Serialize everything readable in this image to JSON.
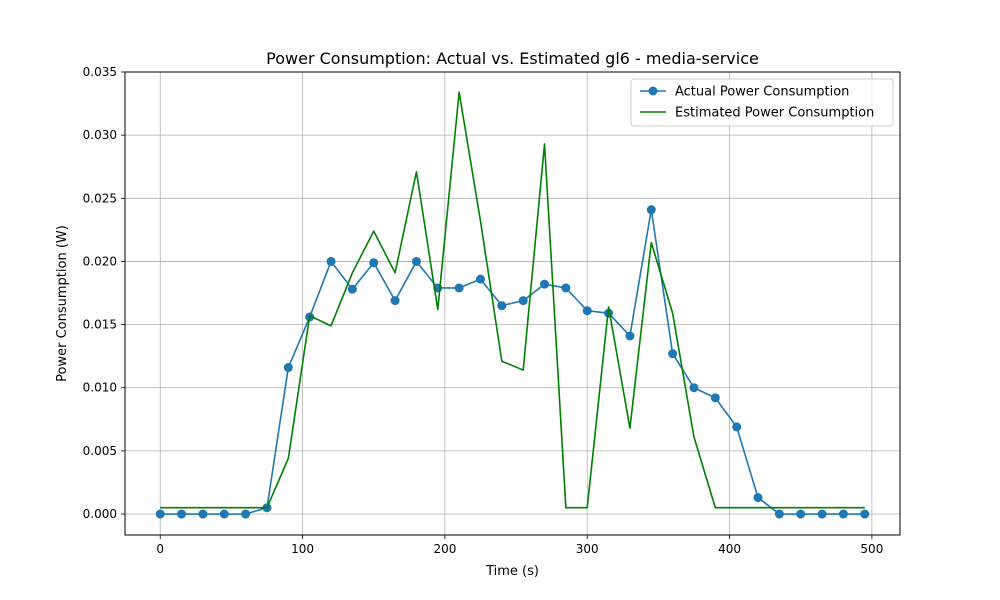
{
  "chart_data": {
    "type": "line",
    "title": "Power Consumption: Actual vs. Estimated gl6 - media-service",
    "xlabel": "Time (s)",
    "ylabel": "Power Consumption (W)",
    "xlim": [
      -24.75,
      519.75
    ],
    "ylim": [
      -0.00166,
      0.035
    ],
    "grid": true,
    "legend_position": "top-right",
    "x_ticks": [
      0,
      100,
      200,
      300,
      400,
      500
    ],
    "x_tick_labels": [
      "0",
      "100",
      "200",
      "300",
      "400",
      "500"
    ],
    "y_ticks": [
      0.0,
      0.005,
      0.01,
      0.015,
      0.02,
      0.025,
      0.03,
      0.035
    ],
    "y_tick_labels": [
      "0.000",
      "0.005",
      "0.010",
      "0.015",
      "0.020",
      "0.025",
      "0.030",
      "0.035"
    ],
    "x": [
      0,
      15,
      30,
      45,
      60,
      75,
      90,
      105,
      120,
      135,
      150,
      165,
      180,
      195,
      210,
      225,
      240,
      255,
      270,
      285,
      300,
      315,
      330,
      345,
      360,
      375,
      390,
      405,
      420,
      435,
      450,
      465,
      480,
      495
    ],
    "series": [
      {
        "name": "Actual Power Consumption",
        "color": "#1f77b4",
        "marker": "circle",
        "values": [
          0.0,
          0.0,
          0.0,
          0.0,
          0.0,
          0.0005,
          0.0116,
          0.0156,
          0.02,
          0.0178,
          0.0199,
          0.0169,
          0.02,
          0.0179,
          0.0179,
          0.0186,
          0.0165,
          0.0169,
          0.0182,
          0.0179,
          0.0161,
          0.0159,
          0.0141,
          0.0241,
          0.0127,
          0.01,
          0.0092,
          0.0069,
          0.0013,
          0.0,
          0.0,
          0.0,
          0.0,
          0.0
        ]
      },
      {
        "name": "Estimated Power Consumption",
        "color": "#008000",
        "marker": "none",
        "values": [
          0.0005,
          0.0005,
          0.0005,
          0.0005,
          0.0005,
          0.0005,
          0.0044,
          0.0157,
          0.0149,
          0.0191,
          0.0224,
          0.0191,
          0.0271,
          0.0162,
          0.0334,
          0.0232,
          0.0121,
          0.0114,
          0.0293,
          0.0005,
          0.0005,
          0.0164,
          0.0068,
          0.0215,
          0.0159,
          0.0061,
          0.0005,
          0.0005,
          0.0005,
          0.0005,
          0.0005,
          0.0005,
          0.0005,
          0.0005
        ]
      }
    ]
  }
}
